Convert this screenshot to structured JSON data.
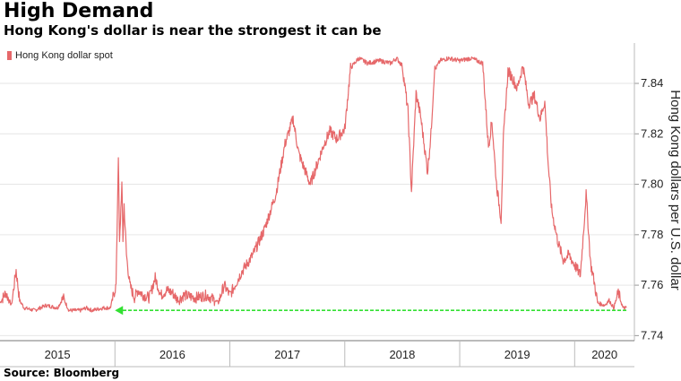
{
  "title": "High Demand",
  "subtitle": "Hong Kong's dollar is near the strongest it can be",
  "source": "Source: Bloomberg",
  "chart_data": {
    "type": "line",
    "legend": [
      "Hong Kong dollar spot"
    ],
    "legend_position": "top-left",
    "ylabel": "Hong Kong dollars per U.S. dollar",
    "y_axis_side": "right",
    "ylim": [
      7.738,
      7.856
    ],
    "yticks": [
      7.74,
      7.76,
      7.78,
      7.8,
      7.82,
      7.84
    ],
    "ytick_labels": [
      "7.74",
      "7.76",
      "7.78",
      "7.80",
      "7.82",
      "7.84"
    ],
    "xlim": [
      2015.0,
      2020.52
    ],
    "x_year_boundaries": [
      2016,
      2017,
      2018,
      2019,
      2020
    ],
    "xtick_labels": [
      "2015",
      "2016",
      "2017",
      "2018",
      "2019",
      "2020"
    ],
    "xtick_label_positions": [
      2015.5,
      2016.5,
      2017.5,
      2018.5,
      2019.5,
      2020.26
    ],
    "annotation": {
      "type": "arrow",
      "value": 7.75,
      "from_x": 2020.45,
      "to_x": 2016.0,
      "color": "#33e033"
    },
    "series": [
      {
        "name": "Hong Kong dollar spot",
        "color": "#e6686a",
        "x": [
          2015.0,
          2015.05,
          2015.1,
          2015.14,
          2015.17,
          2015.21,
          2015.3,
          2015.4,
          2015.5,
          2015.55,
          2015.6,
          2015.7,
          2015.75,
          2015.8,
          2015.9,
          2015.96,
          2016.01,
          2016.03,
          2016.04,
          2016.06,
          2016.07,
          2016.08,
          2016.1,
          2016.13,
          2016.17,
          2016.2,
          2016.25,
          2016.3,
          2016.35,
          2016.4,
          2016.45,
          2016.5,
          2016.55,
          2016.6,
          2016.7,
          2016.8,
          2016.9,
          2016.95,
          2017.0,
          2017.1,
          2017.2,
          2017.3,
          2017.4,
          2017.48,
          2017.55,
          2017.6,
          2017.65,
          2017.7,
          2017.76,
          2017.82,
          2017.87,
          2017.93,
          2018.0,
          2018.05,
          2018.12,
          2018.2,
          2018.3,
          2018.4,
          2018.45,
          2018.5,
          2018.55,
          2018.58,
          2018.62,
          2018.66,
          2018.72,
          2018.75,
          2018.78,
          2018.83,
          2018.9,
          2019.0,
          2019.1,
          2019.2,
          2019.25,
          2019.28,
          2019.32,
          2019.36,
          2019.38,
          2019.42,
          2019.46,
          2019.5,
          2019.55,
          2019.6,
          2019.65,
          2019.7,
          2019.74,
          2019.77,
          2019.8,
          2019.85,
          2019.9,
          2019.95,
          2020.0,
          2020.05,
          2020.1,
          2020.14,
          2020.16,
          2020.2,
          2020.26,
          2020.3,
          2020.34,
          2020.38,
          2020.42,
          2020.45
        ],
        "values": [
          7.753,
          7.757,
          7.752,
          7.766,
          7.754,
          7.751,
          7.75,
          7.752,
          7.751,
          7.755,
          7.75,
          7.75,
          7.751,
          7.75,
          7.751,
          7.751,
          7.76,
          7.812,
          7.776,
          7.8,
          7.778,
          7.792,
          7.772,
          7.76,
          7.755,
          7.758,
          7.756,
          7.755,
          7.763,
          7.756,
          7.758,
          7.757,
          7.754,
          7.756,
          7.755,
          7.756,
          7.753,
          7.76,
          7.756,
          7.765,
          7.772,
          7.782,
          7.796,
          7.816,
          7.826,
          7.812,
          7.806,
          7.8,
          7.808,
          7.816,
          7.821,
          7.818,
          7.822,
          7.846,
          7.85,
          7.848,
          7.849,
          7.848,
          7.85,
          7.847,
          7.829,
          7.797,
          7.836,
          7.827,
          7.805,
          7.82,
          7.845,
          7.849,
          7.85,
          7.849,
          7.85,
          7.848,
          7.815,
          7.825,
          7.8,
          7.786,
          7.818,
          7.845,
          7.842,
          7.838,
          7.847,
          7.832,
          7.835,
          7.826,
          7.833,
          7.808,
          7.79,
          7.778,
          7.77,
          7.772,
          7.768,
          7.764,
          7.796,
          7.768,
          7.764,
          7.753,
          7.752,
          7.754,
          7.751,
          7.757,
          7.751,
          7.751
        ]
      }
    ]
  }
}
